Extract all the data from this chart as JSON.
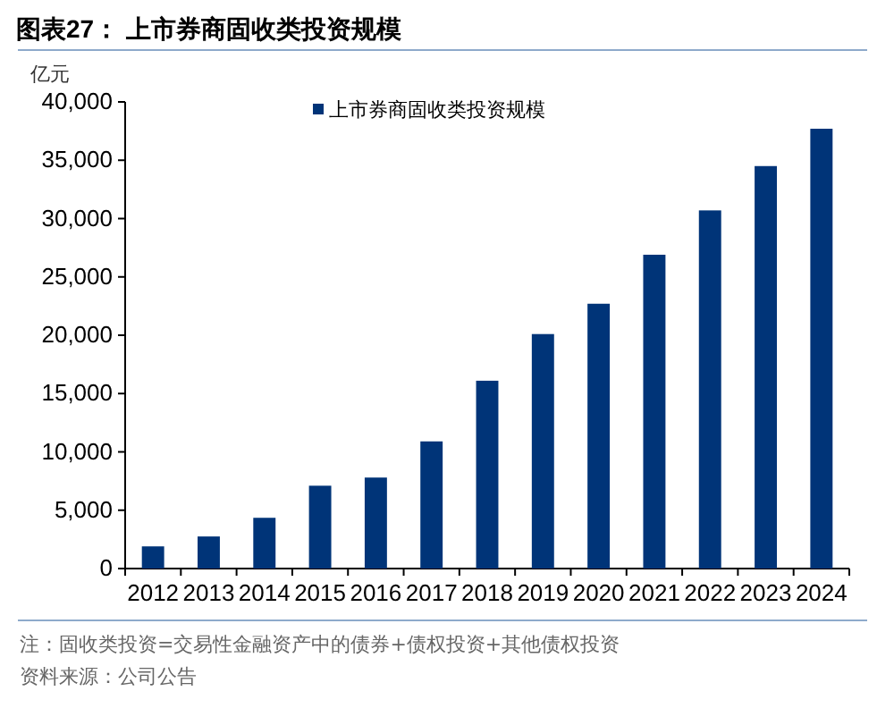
{
  "chart_data": {
    "type": "bar",
    "title": "图表27：  上市券商固收类投资规模",
    "ylabel": "亿元",
    "categories": [
      "2012",
      "2013",
      "2014",
      "2015",
      "2016",
      "2017",
      "2018",
      "2019",
      "2020",
      "2021",
      "2022",
      "2023",
      "2024"
    ],
    "series": [
      {
        "name": "上市券商固收类投资规模",
        "color": "#003478",
        "values": [
          1900,
          2750,
          4350,
          7100,
          7800,
          10900,
          16100,
          20100,
          22700,
          26900,
          30700,
          34500,
          37700
        ]
      }
    ],
    "ylim": [
      0,
      40000
    ],
    "yticks": [
      {
        "value": 0,
        "label": "0"
      },
      {
        "value": 5000,
        "label": "5,000"
      },
      {
        "value": 10000,
        "label": "10,000"
      },
      {
        "value": 15000,
        "label": "15,000"
      },
      {
        "value": 20000,
        "label": "20,000"
      },
      {
        "value": 25000,
        "label": "25,000"
      },
      {
        "value": 30000,
        "label": "30,000"
      },
      {
        "value": 35000,
        "label": "35,000"
      },
      {
        "value": 40000,
        "label": "40,000"
      }
    ],
    "legend": "top",
    "grid": false,
    "annotations": [
      "注：固收类投资=交易性金融资产中的债券+债权投资+其他债权投资",
      "资料来源：公司公告"
    ]
  }
}
